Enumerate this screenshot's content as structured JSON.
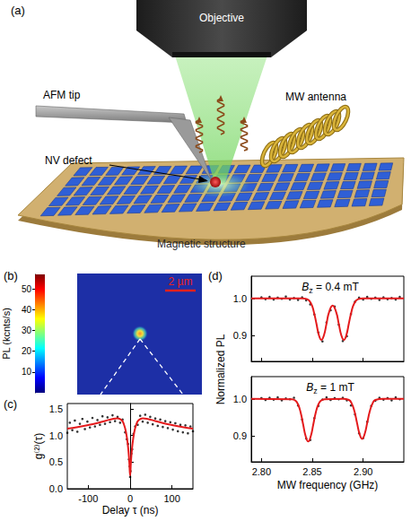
{
  "panel_labels": [
    "(a)",
    "(b)",
    "(c)",
    "(d)"
  ],
  "schematic": {
    "objective": "Objective",
    "afm_tip": "AFM tip",
    "nv_defect": "NV defect",
    "mw_antenna": "MW antenna",
    "magnetic_structure": "Magnetic structure"
  },
  "pl_map": {
    "colorbar_label": "PL (kcnts/s)",
    "colorbar_range": [
      0,
      57
    ],
    "colorbar_ticks": [
      10,
      20,
      30,
      40,
      50
    ],
    "scale_bar": "2 µm"
  },
  "chart_data": [
    {
      "type": "scatter",
      "x_label": "Delay τ (ns)",
      "y_label": "g⁽²⁾(τ)",
      "xlim": [
        -150,
        150
      ],
      "xticks": [
        -100,
        0,
        100
      ],
      "ylim": [
        0,
        1.6
      ],
      "yticks": [
        {
          "value": 0,
          "label": "0.0"
        },
        0.5,
        {
          "value": 1,
          "label": "1.0"
        },
        1.5
      ],
      "series": [
        {
          "type": "scatter",
          "color": "#000000",
          "marker": "circle",
          "x": [
            -150,
            -144,
            -138,
            -132,
            -126,
            -120,
            -114,
            -108,
            -102,
            -96,
            -90,
            -84,
            -78,
            -72,
            -66,
            -60,
            -54,
            -48,
            -42,
            -36,
            -30,
            -24,
            -18,
            -12,
            -8,
            -5,
            -3,
            -1,
            0,
            1,
            3,
            5,
            8,
            12,
            18,
            24,
            30,
            36,
            42,
            48,
            54,
            60,
            66,
            72,
            78,
            84,
            90,
            96,
            102,
            108,
            114,
            120,
            126,
            132,
            138,
            144,
            150
          ],
          "values": [
            1.05,
            1.24,
            1.1,
            1.28,
            1.07,
            1.22,
            1.31,
            1.12,
            1.26,
            1.15,
            1.33,
            1.17,
            1.29,
            1.2,
            1.36,
            1.22,
            1.34,
            1.25,
            1.38,
            1.27,
            1.35,
            1.24,
            1.3,
            1.06,
            0.93,
            0.84,
            0.55,
            0.42,
            0.22,
            0.33,
            0.66,
            0.74,
            1.03,
            1.17,
            1.2,
            1.37,
            1.26,
            1.39,
            1.24,
            1.35,
            1.21,
            1.32,
            1.18,
            1.3,
            1.16,
            1.27,
            1.14,
            1.25,
            1.11,
            1.23,
            1.08,
            1.2,
            1.06,
            1.19,
            1.04,
            1.17,
            1.08
          ]
        },
        {
          "type": "line",
          "color": "#e41a1c",
          "line_style": "solid",
          "x": [
            -150,
            -125,
            -100,
            -80,
            -60,
            -40,
            -30,
            -20,
            -15,
            -10,
            -5,
            -2,
            0,
            2,
            5,
            10,
            15,
            20,
            30,
            40,
            60,
            80,
            100,
            125,
            150
          ],
          "values": [
            1.129,
            1.159,
            1.196,
            1.231,
            1.273,
            1.314,
            1.322,
            1.283,
            1.213,
            1.07,
            0.79,
            0.507,
            0.25,
            0.507,
            0.79,
            1.07,
            1.213,
            1.283,
            1.322,
            1.314,
            1.273,
            1.231,
            1.196,
            1.159,
            1.129
          ]
        }
      ]
    },
    {
      "type": "scatter",
      "annotation": "Bz = 0.4 mT",
      "xlim": [
        2.79,
        2.94
      ],
      "xticks": [
        {
          "value": 2.8,
          "label": "2.80"
        },
        2.85,
        {
          "value": 2.9,
          "label": "2.90"
        }
      ],
      "ylim": [
        0.83,
        1.06
      ],
      "yticks": [
        0.9,
        {
          "value": 1,
          "label": "1.0"
        }
      ],
      "tick_labels": "y",
      "series": [
        {
          "type": "scatter",
          "color": "#000000",
          "marker": "circle",
          "x": [
            2.8,
            2.804,
            2.808,
            2.812,
            2.816,
            2.82,
            2.824,
            2.828,
            2.832,
            2.836,
            2.84,
            2.844,
            2.848,
            2.852,
            2.856,
            2.86,
            2.864,
            2.868,
            2.872,
            2.876,
            2.88,
            2.884,
            2.888,
            2.892,
            2.896,
            2.9,
            2.904,
            2.908,
            2.912,
            2.916,
            2.92,
            2.924,
            2.928,
            2.932,
            2.936
          ],
          "values": [
            1.003,
            0.998,
            1.004,
            0.997,
            1.002,
            0.999,
            1.005,
            0.997,
            1.001,
            0.996,
            1.003,
            0.995,
            0.984,
            0.957,
            0.908,
            0.884,
            0.935,
            0.968,
            0.978,
            0.929,
            0.885,
            0.898,
            0.958,
            0.991,
            1.002,
            0.997,
            1.004,
            0.999,
            1.002,
            0.996,
            1.003,
            0.998,
            1.001,
            0.997,
            1.004
          ]
        },
        {
          "type": "line",
          "color": "#e41a1c",
          "line_style": "solid",
          "x": [
            2.79,
            2.83,
            2.84,
            2.845,
            2.849,
            2.8515,
            2.854,
            2.8565,
            2.859,
            2.8615,
            2.864,
            2.8665,
            2.87,
            2.8735,
            2.876,
            2.8785,
            2.881,
            2.8835,
            2.886,
            2.8885,
            2.891,
            2.895,
            2.9,
            2.94
          ],
          "values": [
            1.0,
            1.0,
            1.0,
            0.998,
            0.985,
            0.964,
            0.933,
            0.901,
            0.888,
            0.901,
            0.932,
            0.963,
            0.981,
            0.963,
            0.932,
            0.901,
            0.888,
            0.901,
            0.933,
            0.964,
            0.985,
            0.998,
            1.0,
            1.0
          ]
        }
      ]
    },
    {
      "type": "scatter",
      "annotation": "Bz = 1 mT",
      "x_label": "MW frequency (GHz)",
      "y_label": "Normalized PL",
      "xlim": [
        2.79,
        2.94
      ],
      "xticks": [
        {
          "value": 2.8,
          "label": "2.80"
        },
        2.85,
        {
          "value": 2.9,
          "label": "2.90"
        }
      ],
      "ylim": [
        0.83,
        1.06
      ],
      "yticks": [
        0.9,
        {
          "value": 1,
          "label": "1.0"
        }
      ],
      "series": [
        {
          "type": "scatter",
          "color": "#000000",
          "marker": "circle",
          "x": [
            2.8,
            2.804,
            2.808,
            2.812,
            2.816,
            2.82,
            2.824,
            2.828,
            2.832,
            2.836,
            2.84,
            2.844,
            2.848,
            2.852,
            2.856,
            2.86,
            2.864,
            2.868,
            2.872,
            2.876,
            2.88,
            2.884,
            2.888,
            2.892,
            2.896,
            2.9,
            2.904,
            2.908,
            2.912,
            2.916,
            2.92,
            2.924,
            2.928,
            2.932,
            2.936
          ],
          "values": [
            1.002,
            0.997,
            1.003,
            0.998,
            1.004,
            0.996,
            1.001,
            0.999,
            1.003,
            0.982,
            0.944,
            0.893,
            0.889,
            0.948,
            0.981,
            0.998,
            1.004,
            0.997,
            1.002,
            0.999,
            1.003,
            0.996,
            0.982,
            0.958,
            0.907,
            0.894,
            0.938,
            0.981,
            0.995,
            1.003,
            0.998,
            1.002,
            0.996,
            1.004,
            0.999
          ]
        },
        {
          "type": "line",
          "color": "#e41a1c",
          "line_style": "solid",
          "x": [
            2.79,
            2.83,
            2.8335,
            2.836,
            2.8385,
            2.841,
            2.8435,
            2.846,
            2.8485,
            2.851,
            2.8535,
            2.856,
            2.8585,
            2.862,
            2.88,
            2.886,
            2.889,
            2.8915,
            2.894,
            2.8965,
            2.899,
            2.9015,
            2.904,
            2.9065,
            2.909,
            2.912,
            2.92,
            2.94
          ],
          "values": [
            1.0,
            0.999,
            0.995,
            0.985,
            0.964,
            0.931,
            0.899,
            0.885,
            0.899,
            0.931,
            0.964,
            0.985,
            0.995,
            0.999,
            1.0,
            0.997,
            0.986,
            0.966,
            0.935,
            0.905,
            0.892,
            0.905,
            0.935,
            0.966,
            0.986,
            0.997,
            1.0,
            1.0
          ]
        }
      ]
    }
  ]
}
